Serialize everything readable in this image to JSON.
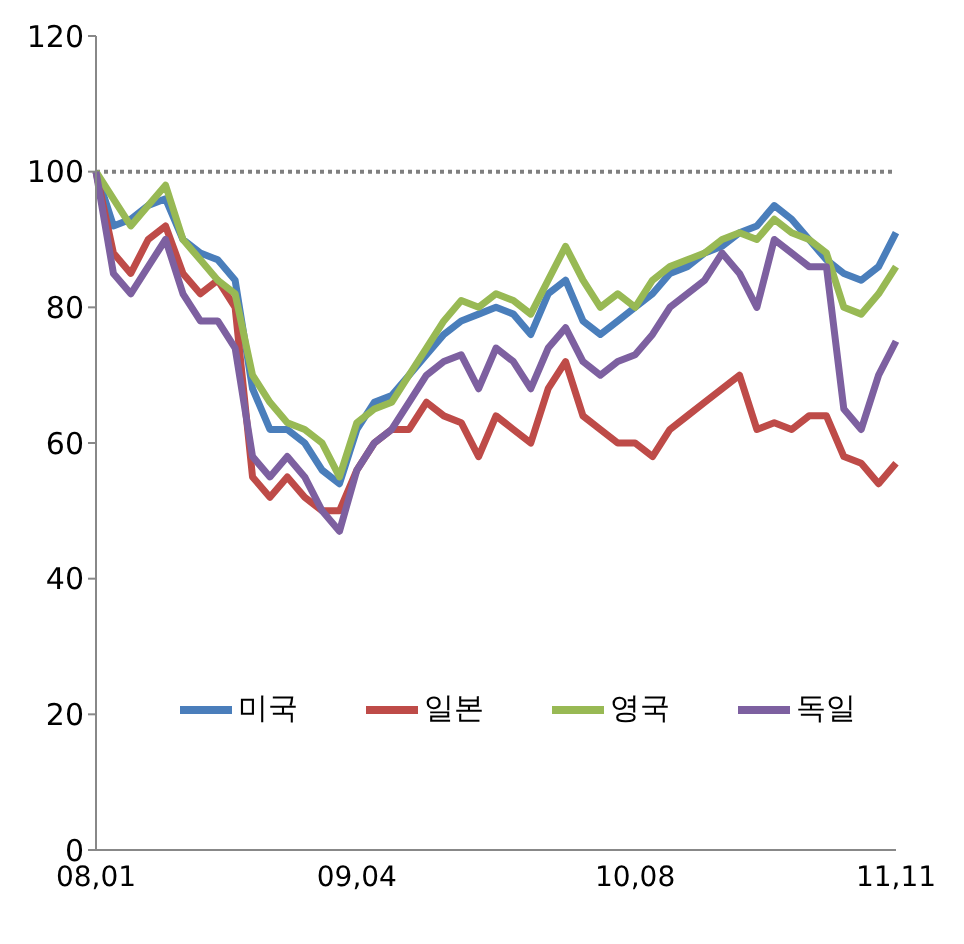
{
  "chart_data": {
    "type": "line",
    "categories": [
      "08,01",
      null,
      null,
      null,
      null,
      null,
      null,
      null,
      null,
      null,
      null,
      null,
      null,
      null,
      null,
      "09,04",
      null,
      null,
      null,
      null,
      null,
      null,
      null,
      null,
      null,
      null,
      null,
      null,
      null,
      null,
      null,
      "10,08",
      null,
      null,
      null,
      null,
      null,
      null,
      null,
      null,
      null,
      null,
      null,
      null,
      null,
      null,
      "11,11"
    ],
    "series": [
      {
        "name": "미국",
        "color": "#4a7ebb",
        "values": [
          100,
          92,
          93,
          95,
          96,
          90,
          88,
          87,
          84,
          68,
          62,
          62,
          60,
          56,
          54,
          62,
          66,
          67,
          70,
          73,
          76,
          78,
          79,
          80,
          79,
          76,
          82,
          84,
          78,
          76,
          78,
          80,
          82,
          85,
          86,
          88,
          89,
          91,
          92,
          95,
          93,
          90,
          87,
          85,
          84,
          86,
          91
        ]
      },
      {
        "name": "일본",
        "color": "#be4b48",
        "values": [
          100,
          88,
          85,
          90,
          92,
          85,
          82,
          84,
          80,
          55,
          52,
          55,
          52,
          50,
          50,
          56,
          60,
          62,
          62,
          66,
          64,
          63,
          58,
          64,
          62,
          60,
          68,
          72,
          64,
          62,
          60,
          60,
          58,
          62,
          64,
          66,
          68,
          70,
          62,
          63,
          62,
          64,
          64,
          58,
          57,
          54,
          57
        ]
      },
      {
        "name": "영국",
        "color": "#98b954",
        "values": [
          100,
          96,
          92,
          95,
          98,
          90,
          87,
          84,
          82,
          70,
          66,
          63,
          62,
          60,
          55,
          63,
          65,
          66,
          70,
          74,
          78,
          81,
          80,
          82,
          81,
          79,
          84,
          89,
          84,
          80,
          82,
          80,
          84,
          86,
          87,
          88,
          90,
          91,
          90,
          93,
          91,
          90,
          88,
          80,
          79,
          82,
          86
        ]
      },
      {
        "name": "독일",
        "color": "#7d60a0",
        "values": [
          100,
          85,
          82,
          86,
          90,
          82,
          78,
          78,
          74,
          58,
          55,
          58,
          55,
          50,
          47,
          56,
          60,
          62,
          66,
          70,
          72,
          73,
          68,
          74,
          72,
          68,
          74,
          77,
          72,
          70,
          72,
          73,
          76,
          80,
          82,
          84,
          88,
          85,
          80,
          90,
          88,
          86,
          86,
          65,
          62,
          70,
          75
        ]
      }
    ],
    "ylim": [
      0,
      120
    ],
    "yticks": [
      0,
      20,
      40,
      60,
      80,
      100,
      120
    ],
    "ref_lines": [
      {
        "axis": "y",
        "value": 100,
        "color": "#808080",
        "line_style": "dotted"
      }
    ],
    "legend": "bottom",
    "marker": "none",
    "line_style": "solid"
  }
}
